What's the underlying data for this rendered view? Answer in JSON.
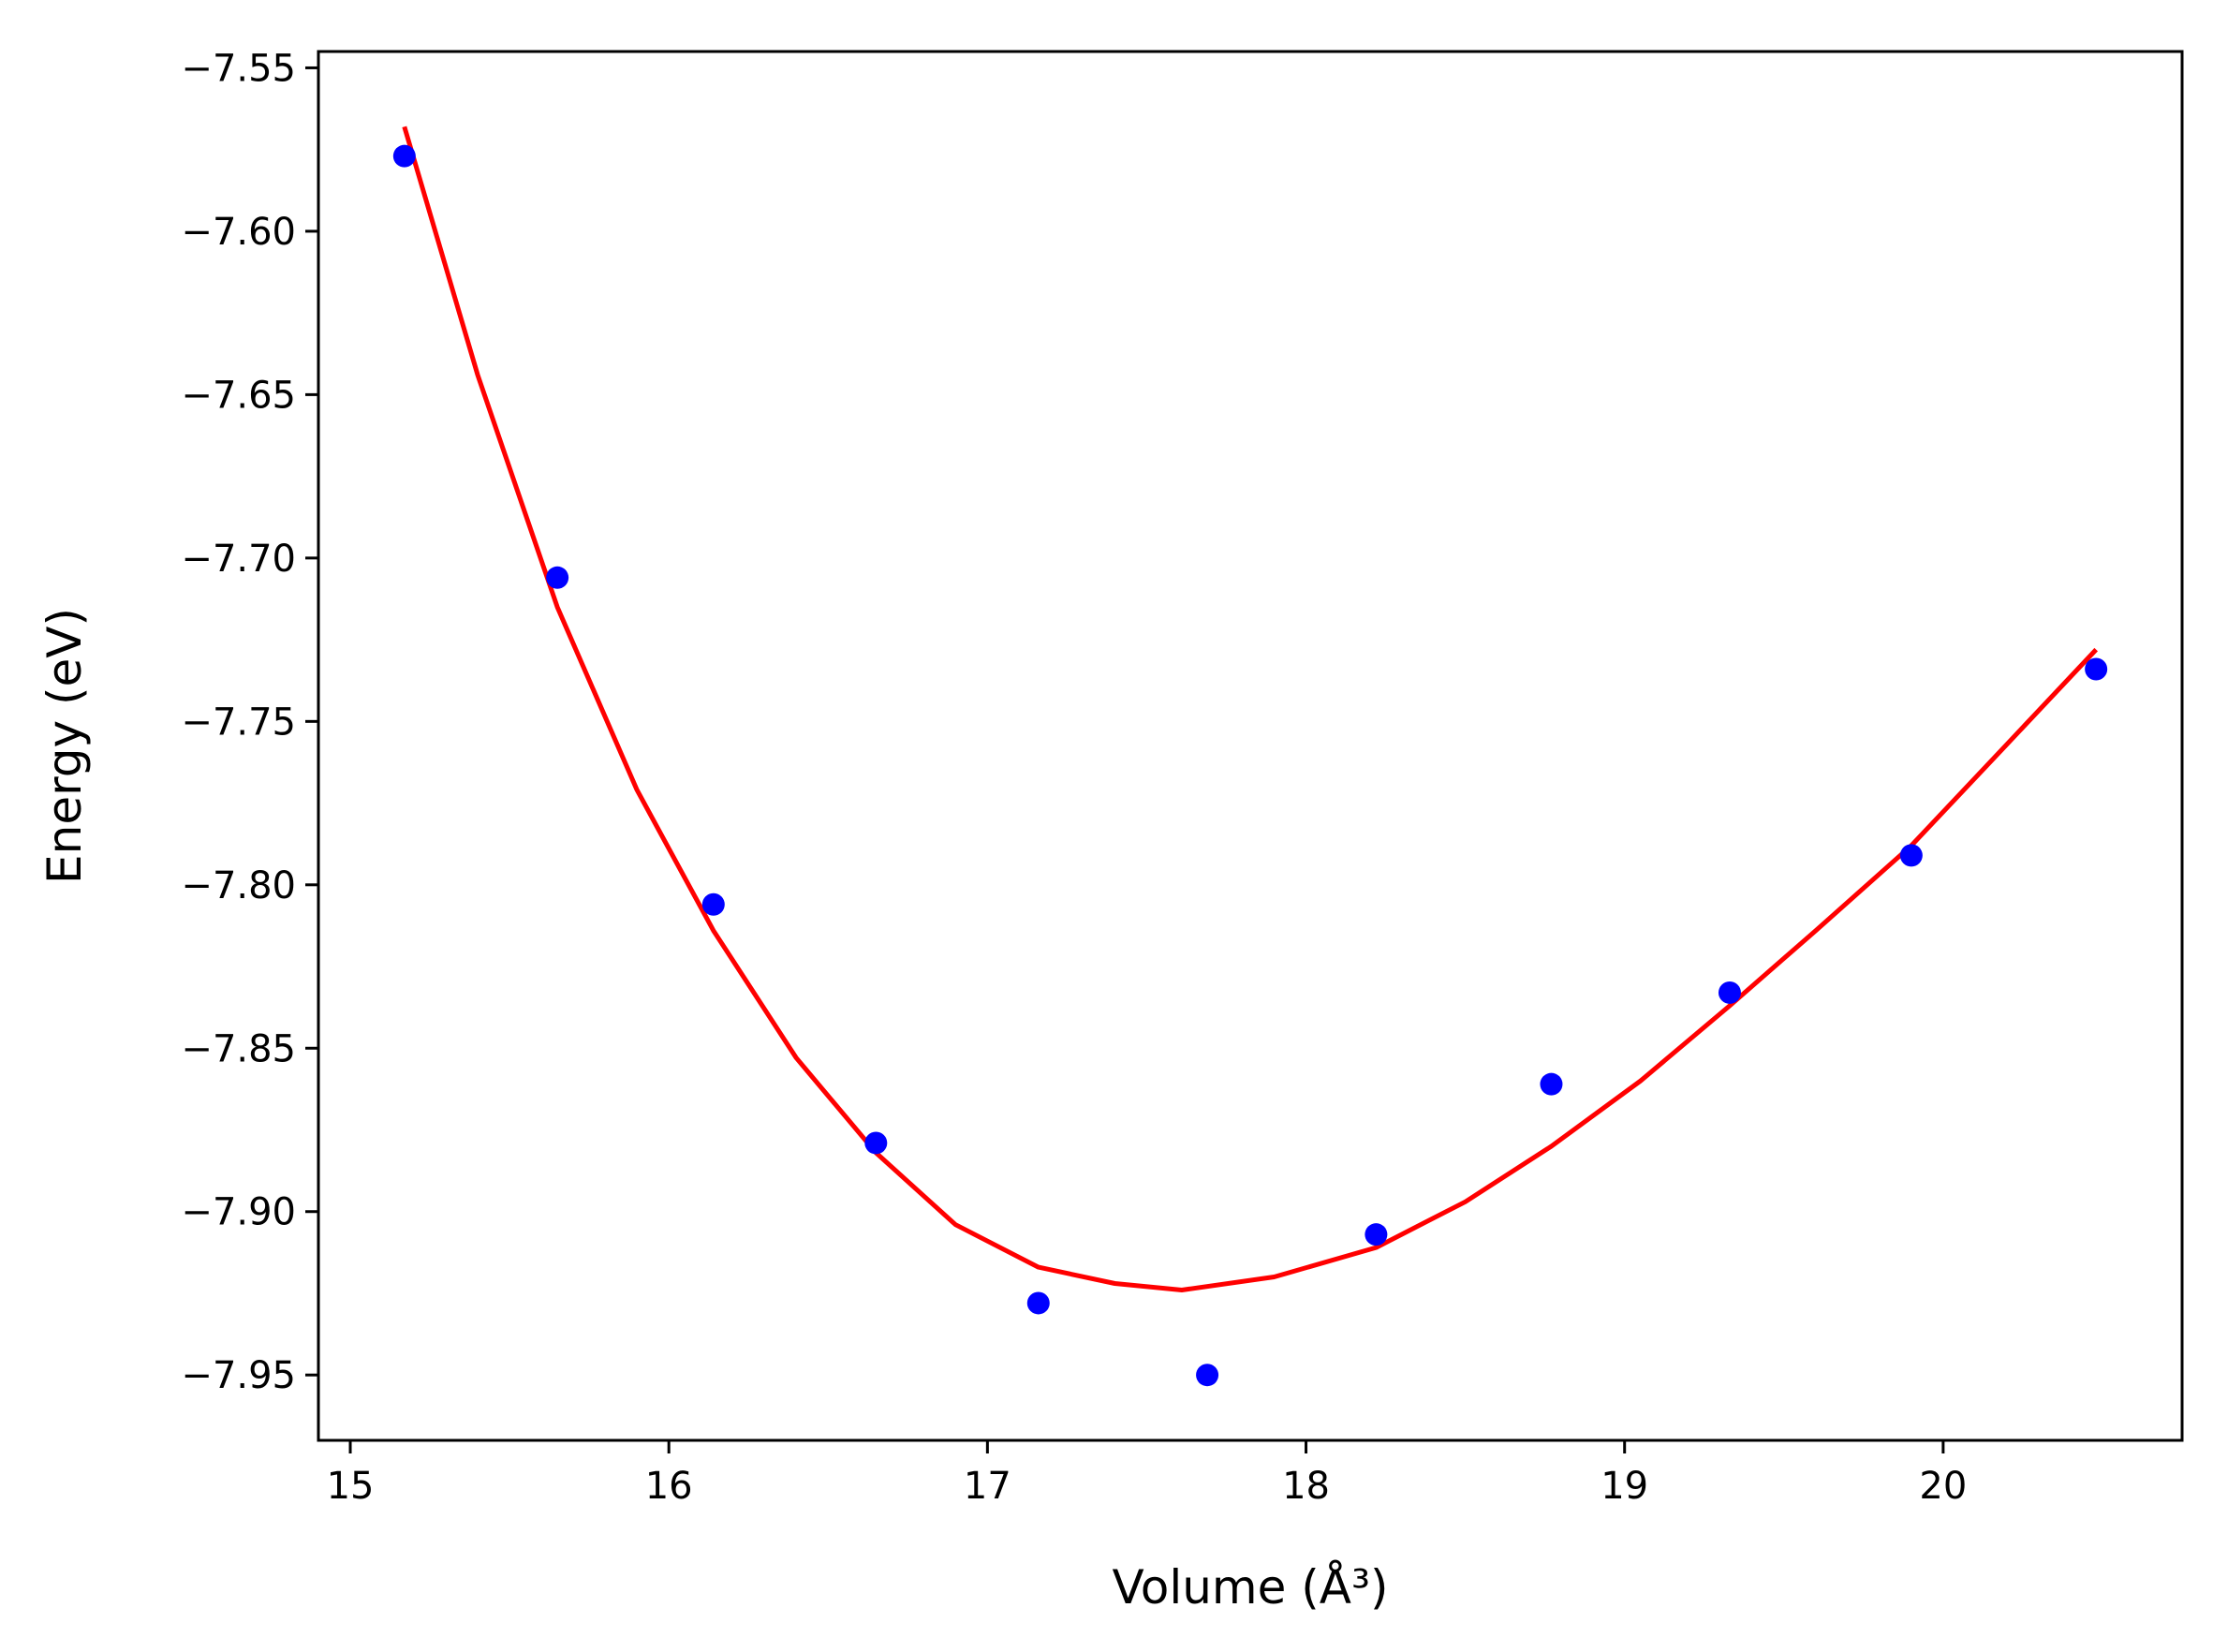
{
  "chart_data": {
    "type": "scatter",
    "title": "",
    "xlabel": "Volume (Å³)",
    "ylabel": "Energy (eV)",
    "xlim": [
      14.9,
      20.75
    ],
    "ylim": [
      -7.97,
      -7.545
    ],
    "xticks": [
      15,
      16,
      17,
      18,
      19,
      20
    ],
    "xtick_labels": [
      "15",
      "16",
      "17",
      "18",
      "19",
      "20"
    ],
    "yticks": [
      -7.55,
      -7.6,
      -7.65,
      -7.7,
      -7.75,
      -7.8,
      -7.85,
      -7.9,
      -7.95
    ],
    "ytick_labels": [
      "−7.55",
      "−7.60",
      "−7.65",
      "−7.70",
      "−7.75",
      "−7.80",
      "−7.85",
      "−7.90",
      "−7.95"
    ],
    "grid": false,
    "legend": "none",
    "series": [
      {
        "kind": "points",
        "color": "#0000ff",
        "x": [
          15.17,
          15.65,
          16.14,
          16.65,
          17.16,
          17.69,
          18.22,
          18.77,
          19.33,
          19.9,
          20.48
        ],
        "y": [
          -7.577,
          -7.706,
          -7.806,
          -7.879,
          -7.928,
          -7.95,
          -7.907,
          -7.861,
          -7.833,
          -7.791,
          -7.734
        ]
      },
      {
        "kind": "fit-line",
        "color": "#ff0000",
        "x": [
          15.17,
          15.4,
          15.65,
          15.9,
          16.14,
          16.4,
          16.65,
          16.9,
          17.16,
          17.4,
          17.61,
          17.9,
          18.22,
          18.5,
          18.77,
          19.05,
          19.33,
          19.6,
          19.9,
          20.2,
          20.48
        ],
        "y": [
          -7.568,
          -7.644,
          -7.715,
          -7.771,
          -7.814,
          -7.853,
          -7.882,
          -7.904,
          -7.917,
          -7.922,
          -7.924,
          -7.92,
          -7.911,
          -7.897,
          -7.88,
          -7.86,
          -7.837,
          -7.814,
          -7.788,
          -7.757,
          -7.728
        ]
      }
    ]
  }
}
